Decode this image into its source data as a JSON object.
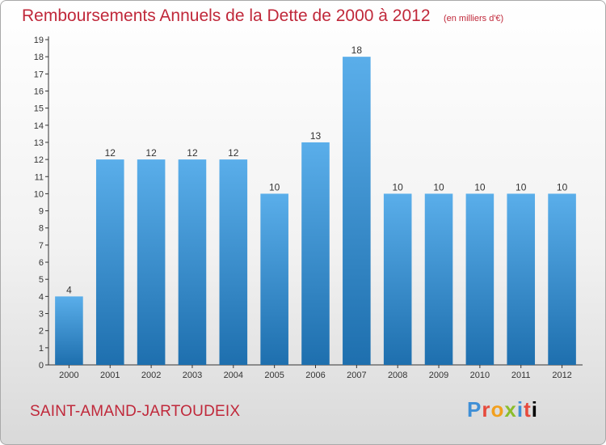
{
  "chart_data": {
    "type": "bar",
    "title": "Remboursements Annuels de la Dette de 2000 à 2012",
    "unit_note": "(en milliers d'€)",
    "categories": [
      "2000",
      "2001",
      "2002",
      "2003",
      "2004",
      "2005",
      "2006",
      "2007",
      "2008",
      "2009",
      "2010",
      "2011",
      "2012"
    ],
    "values": [
      4,
      12,
      12,
      12,
      12,
      10,
      13,
      18,
      10,
      10,
      10,
      10,
      10
    ],
    "ylim": [
      0,
      19
    ],
    "yticks": [
      "0",
      "1",
      "2",
      "3",
      "4",
      "5",
      "6",
      "7",
      "8",
      "9",
      "10",
      "11",
      "12",
      "13",
      "14",
      "15",
      "16",
      "17",
      "18",
      "19"
    ],
    "grid": false,
    "legend": "none",
    "bar_color_top": "#5aaeea",
    "bar_color_bottom": "#1e6fae"
  },
  "footer": {
    "city": "SAINT-AMAND-JARTOUDEIX",
    "brand": "Proxiti"
  },
  "colors": {
    "title": "#c0283a",
    "axis": "#333333"
  }
}
